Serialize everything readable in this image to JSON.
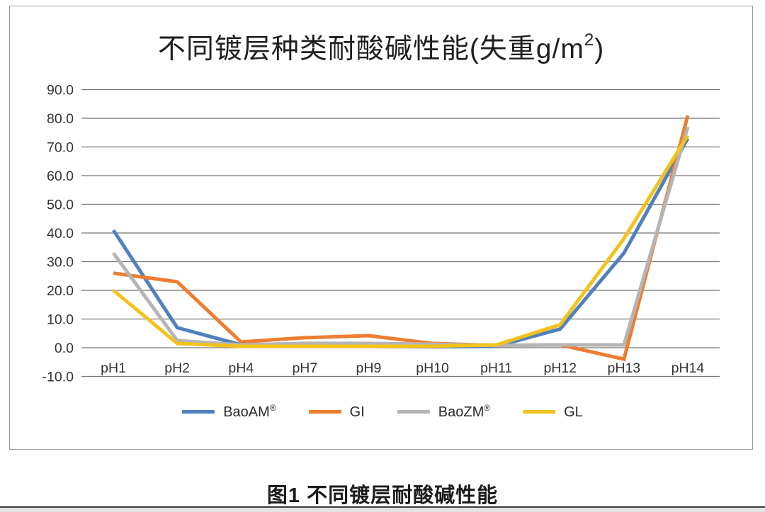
{
  "page": {
    "caption": "图1 不同镀层耐酸碱性能"
  },
  "chart_data": {
    "type": "line",
    "title": "不同镀层种类耐酸碱性能(失重g/m²)",
    "title_prefix": "不同镀层种类耐酸碱性能(失重g/m",
    "title_sup": "2",
    "title_suffix": ")",
    "xlabel": "",
    "ylabel": "",
    "ylim": [
      -10,
      90
    ],
    "grid": true,
    "legend_position": "bottom",
    "yticks": [
      "90.0",
      "80.0",
      "70.0",
      "60.0",
      "50.0",
      "40.0",
      "30.0",
      "20.0",
      "10.0",
      "0.0",
      "-10.0"
    ],
    "categories": [
      "pH1",
      "pH2",
      "pH4",
      "pH7",
      "pH9",
      "pH10",
      "pH11",
      "pH12",
      "pH13",
      "pH14"
    ],
    "series": [
      {
        "name": "BaoAM",
        "reg_mark": "®",
        "color": "#4f81bd",
        "values": [
          41,
          7,
          1,
          0.5,
          0.5,
          0.3,
          0.5,
          6.5,
          33,
          73
        ]
      },
      {
        "name": "GI",
        "reg_mark": "",
        "color": "#ed7d31",
        "values": [
          26,
          23,
          2,
          3.5,
          4.2,
          1.5,
          0.8,
          1,
          -4,
          81
        ]
      },
      {
        "name": "BaoZM",
        "reg_mark": "®",
        "color": "#b5b5b5",
        "values": [
          33,
          2.5,
          1,
          1.5,
          1.5,
          1.2,
          0.8,
          1,
          1,
          77
        ]
      },
      {
        "name": "GL",
        "reg_mark": "",
        "color": "#f3c21b",
        "values": [
          20,
          1.5,
          0.5,
          0.5,
          0.5,
          0.5,
          1,
          8,
          38,
          74
        ]
      }
    ],
    "gridline_color": "#757575",
    "axis_text_color": "#333333"
  }
}
